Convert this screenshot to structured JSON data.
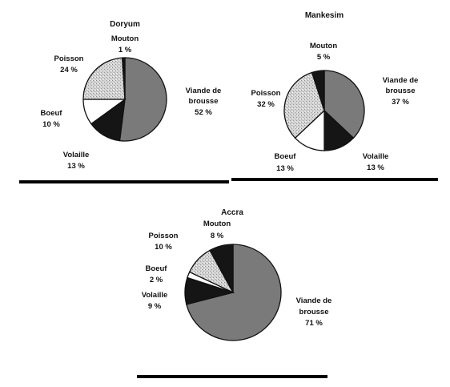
{
  "chart_data": [
    {
      "type": "pie",
      "title": "Doryum",
      "slices": [
        {
          "label": "Viande de brousse",
          "value": 52,
          "value_text": "52 %",
          "color": "#7a7a7a",
          "pattern": "solid"
        },
        {
          "label": "Volaille",
          "value": 13,
          "value_text": "13 %",
          "color": "#151515",
          "pattern": "solid"
        },
        {
          "label": "Boeuf",
          "value": 10,
          "value_text": "10 %",
          "color": "#ffffff",
          "pattern": "solid"
        },
        {
          "label": "Poisson",
          "value": 24,
          "value_text": "24 %",
          "color": "#cfcfcf",
          "pattern": "speckle"
        },
        {
          "label": "Mouton",
          "value": 1,
          "value_text": "1 %",
          "color": "#151515",
          "pattern": "solid"
        }
      ]
    },
    {
      "type": "pie",
      "title": "Mankesim",
      "slices": [
        {
          "label": "Viande de brousse",
          "value": 37,
          "value_text": "37 %",
          "color": "#7a7a7a",
          "pattern": "solid"
        },
        {
          "label": "Volaille",
          "value": 13,
          "value_text": "13 %",
          "color": "#151515",
          "pattern": "solid"
        },
        {
          "label": "Boeuf",
          "value": 13,
          "value_text": "13 %",
          "color": "#ffffff",
          "pattern": "solid"
        },
        {
          "label": "Poisson",
          "value": 32,
          "value_text": "32 %",
          "color": "#cfcfcf",
          "pattern": "speckle"
        },
        {
          "label": "Mouton",
          "value": 5,
          "value_text": "5 %",
          "color": "#151515",
          "pattern": "solid"
        }
      ]
    },
    {
      "type": "pie",
      "title": "Accra",
      "slices": [
        {
          "label": "Viande de brousse",
          "value": 71,
          "value_text": "71 %",
          "color": "#7a7a7a",
          "pattern": "solid"
        },
        {
          "label": "Volaille",
          "value": 9,
          "value_text": "9 %",
          "color": "#151515",
          "pattern": "solid"
        },
        {
          "label": "Boeuf",
          "value": 2,
          "value_text": "2 %",
          "color": "#ffffff",
          "pattern": "solid"
        },
        {
          "label": "Poisson",
          "value": 10,
          "value_text": "10 %",
          "color": "#cfcfcf",
          "pattern": "speckle"
        },
        {
          "label": "Mouton",
          "value": 8,
          "value_text": "8 %",
          "color": "#151515",
          "pattern": "solid"
        }
      ]
    }
  ]
}
